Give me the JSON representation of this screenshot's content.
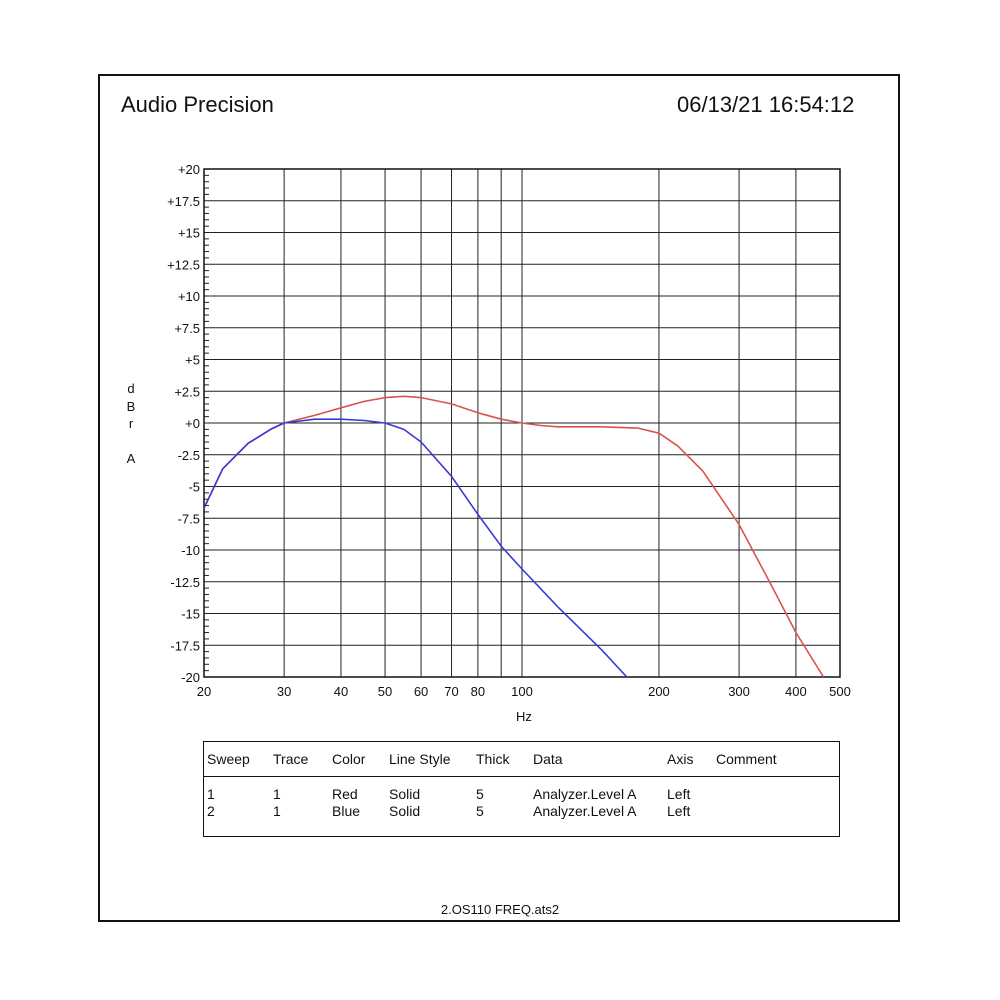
{
  "header": {
    "brand": "Audio Precision",
    "timestamp": "06/13/21 16:54:12"
  },
  "chart_data": {
    "type": "line",
    "x_scale": "log",
    "xlim": [
      20,
      500
    ],
    "ylim": [
      -20,
      20
    ],
    "xlabel": "Hz",
    "ylabel": "dBr A",
    "ylabel_chars": [
      "d",
      "B",
      "r",
      "",
      "A"
    ],
    "grid": true,
    "x_gridlines": [
      30,
      40,
      50,
      60,
      70,
      80,
      90,
      100,
      200,
      300,
      400
    ],
    "x_ticks": [
      20,
      30,
      40,
      50,
      60,
      70,
      80,
      100,
      200,
      300,
      400,
      500
    ],
    "y_ticks": [
      "+20",
      "+17.5",
      "+15",
      "+12.5",
      "+10",
      "+7.5",
      "+5",
      "+2.5",
      "+0",
      "-2.5",
      "-5",
      "-7.5",
      "-10",
      "-12.5",
      "-15",
      "-17.5",
      "-20"
    ],
    "series": [
      {
        "color": "#d9534f",
        "x": [
          20,
          22,
          25,
          28,
          30,
          35,
          40,
          45,
          50,
          55,
          60,
          70,
          80,
          90,
          100,
          110,
          120,
          150,
          180,
          200,
          220,
          250,
          300,
          350,
          400,
          460
        ],
        "y": [
          -6.7,
          -3.6,
          -1.6,
          -0.5,
          0,
          0.6,
          1.2,
          1.7,
          2.0,
          2.1,
          2.0,
          1.5,
          0.8,
          0.3,
          0,
          -0.2,
          -0.3,
          -0.3,
          -0.4,
          -0.8,
          -1.8,
          -3.8,
          -8.0,
          -12.5,
          -16.5,
          -20
        ]
      },
      {
        "color": "#3a3ad6",
        "x": [
          20,
          22,
          25,
          28,
          30,
          35,
          40,
          45,
          50,
          55,
          60,
          70,
          80,
          90,
          100,
          120,
          150,
          170
        ],
        "y": [
          -6.7,
          -3.6,
          -1.6,
          -0.5,
          0,
          0.3,
          0.3,
          0.2,
          0,
          -0.5,
          -1.5,
          -4.2,
          -7.2,
          -9.7,
          -11.5,
          -14.5,
          -17.9,
          -20
        ]
      }
    ]
  },
  "legend": {
    "headers": [
      "Sweep",
      "Trace",
      "Color",
      "Line Style",
      "Thick",
      "Data",
      "Axis",
      "Comment"
    ],
    "rows": [
      [
        "1",
        "1",
        "Red",
        "Solid",
        "5",
        "Analyzer.Level A",
        "Left",
        ""
      ],
      [
        "2",
        "1",
        "Blue",
        "Solid",
        "5",
        "Analyzer.Level A",
        "Left",
        ""
      ]
    ]
  },
  "footer": {
    "filename": "2.OS110 FREQ.ats2"
  }
}
